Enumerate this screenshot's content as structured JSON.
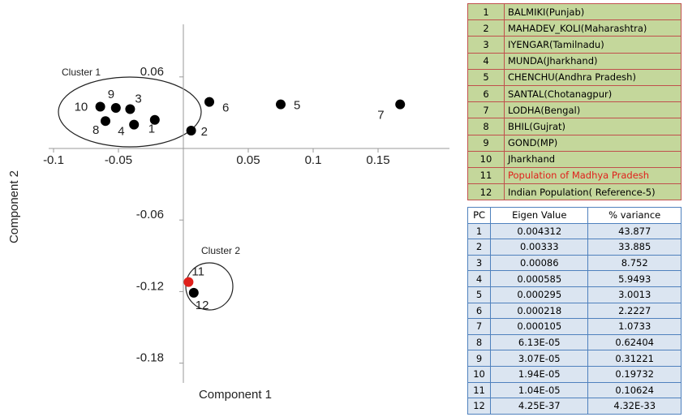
{
  "chart_data": {
    "type": "scatter",
    "x_label": "Component 1",
    "y_label": "Component 2",
    "annotations": [
      "Cluster 1",
      "Cluster 2"
    ],
    "xlim": [
      -0.1,
      0.2
    ],
    "ylim": [
      -0.2,
      0.1
    ],
    "xticks": [
      -0.1,
      -0.05,
      0.05,
      0.1,
      0.15
    ],
    "yticks": [
      0.06,
      -0.06,
      -0.12,
      -0.18
    ],
    "labels": [
      "1",
      "2",
      "3",
      "4",
      "5",
      "6",
      "7",
      "8",
      "9",
      "10",
      "11",
      "12"
    ],
    "x": [
      -0.022,
      0.006,
      -0.041,
      -0.038,
      0.075,
      0.02,
      0.167,
      -0.06,
      -0.052,
      -0.064,
      0.004,
      0.008
    ],
    "values": [
      0.024,
      0.015,
      0.033,
      0.02,
      0.037,
      0.039,
      0.037,
      0.023,
      0.034,
      0.035,
      -0.112,
      -0.121
    ],
    "colors": [
      "#000",
      "#000",
      "#000",
      "#000",
      "#000",
      "#000",
      "#000",
      "#000",
      "#000",
      "#000",
      "#e0201b",
      "#000"
    ]
  },
  "populations_table": {
    "rows": [
      [
        "1",
        "BALMIKI(Punjab)"
      ],
      [
        "2",
        "MAHADEV_KOLI(Maharashtra)"
      ],
      [
        "3",
        "IYENGAR(Tamilnadu)"
      ],
      [
        "4",
        "MUNDA(Jharkhand)"
      ],
      [
        "5",
        "CHENCHU(Andhra Pradesh)"
      ],
      [
        "6",
        "SANTAL(Chotanagpur)"
      ],
      [
        "7",
        "LODHA(Bengal)"
      ],
      [
        "8",
        "BHIL(Gujrat)"
      ],
      [
        "9",
        "GOND(MP)"
      ],
      [
        "10",
        "Jharkhand"
      ],
      [
        "11",
        "Population of Madhya Pradesh"
      ],
      [
        "12",
        "Indian Population( Reference-5)"
      ]
    ]
  },
  "variance_table": {
    "header": [
      "PC",
      "Eigen Value",
      "% variance"
    ],
    "rows": [
      [
        "1",
        "0.004312",
        "43.877"
      ],
      [
        "2",
        "0.00333",
        "33.885"
      ],
      [
        "3",
        "0.00086",
        "8.752"
      ],
      [
        "4",
        "0.000585",
        "5.9493"
      ],
      [
        "5",
        "0.000295",
        "3.0013"
      ],
      [
        "6",
        "0.000218",
        "2.2227"
      ],
      [
        "7",
        "0.000105",
        "1.0733"
      ],
      [
        "8",
        "6.13E-05",
        "0.62404"
      ],
      [
        "9",
        "3.07E-05",
        "0.31221"
      ],
      [
        "10",
        "1.94E-05",
        "0.19732"
      ],
      [
        "11",
        "1.04E-05",
        "0.10624"
      ],
      [
        "12",
        "4.25E-37",
        "4.32E-33"
      ]
    ]
  }
}
